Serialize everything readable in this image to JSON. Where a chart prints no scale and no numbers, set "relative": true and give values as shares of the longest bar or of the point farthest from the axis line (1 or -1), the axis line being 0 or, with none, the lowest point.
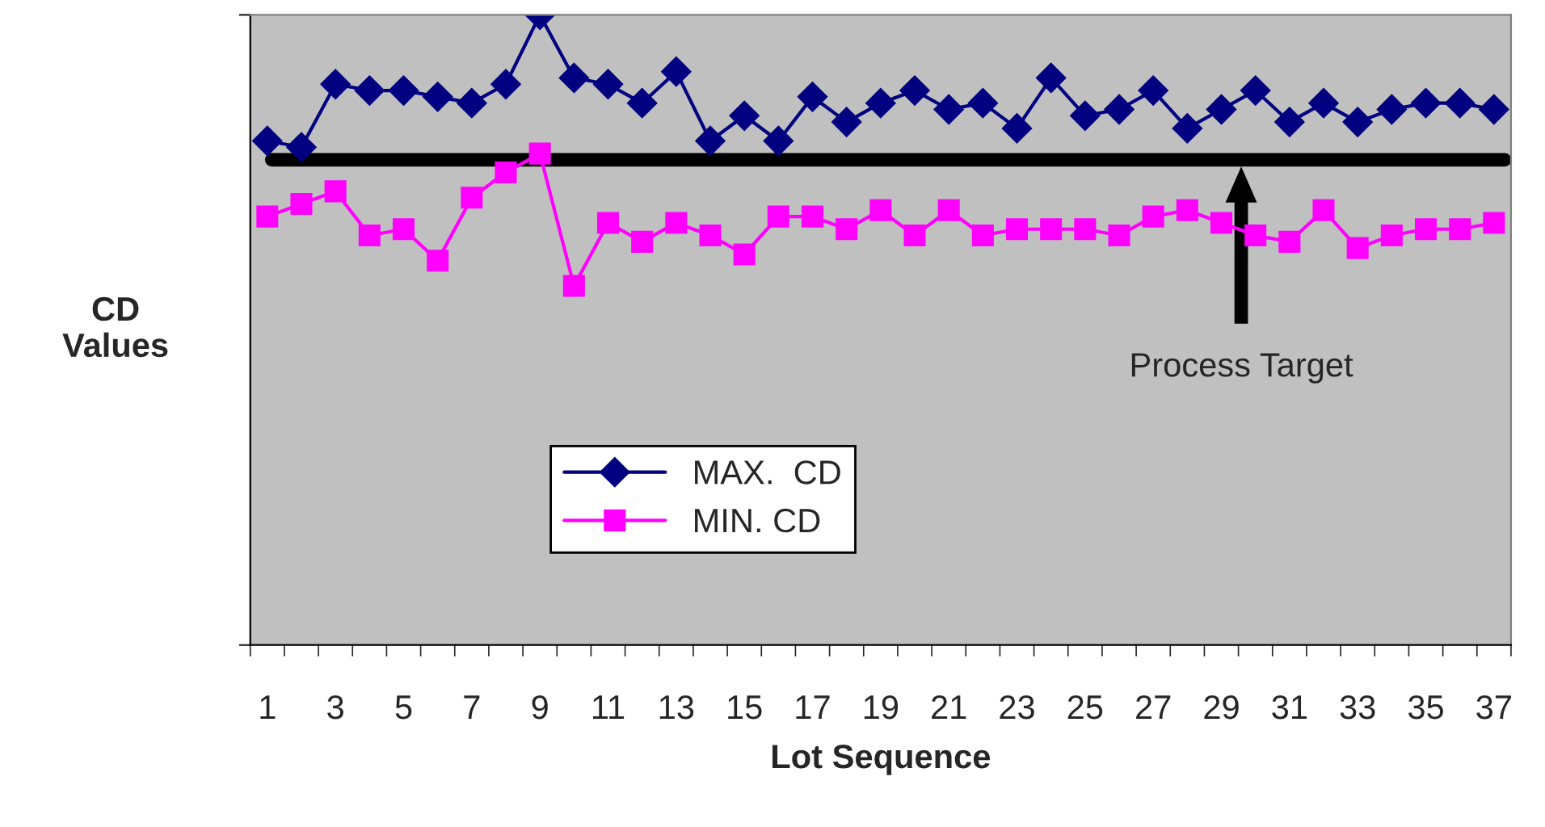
{
  "chart_data": {
    "type": "line",
    "xlabel": "Lot Sequence",
    "ylabel": "CD\nValues",
    "relative": true,
    "tick_labels": "x",
    "legend": "bottom left",
    "grid": false,
    "categories": [
      "1",
      null,
      "3",
      null,
      "5",
      null,
      "7",
      null,
      "9",
      null,
      "11",
      null,
      "13",
      null,
      "15",
      null,
      "17",
      null,
      "19",
      null,
      "21",
      null,
      "23",
      null,
      "25",
      null,
      "27",
      null,
      "29",
      null,
      "31",
      null,
      "33",
      null,
      "35",
      null,
      "37"
    ],
    "series": [
      {
        "name": "MAX.  CD",
        "color": "#000080",
        "marker": "diamond",
        "values": [
          0.8,
          0.79,
          0.89,
          0.88,
          0.88,
          0.87,
          0.86,
          0.89,
          1,
          0.9,
          0.89,
          0.86,
          0.91,
          0.8,
          0.84,
          0.8,
          0.87,
          0.83,
          0.86,
          0.88,
          0.85,
          0.86,
          0.82,
          0.9,
          0.84,
          0.85,
          0.88,
          0.82,
          0.85,
          0.88,
          0.83,
          0.86,
          0.83,
          0.85,
          0.86,
          0.86,
          0.85
        ]
      },
      {
        "name": "MIN. CD",
        "color": "#ff00ff",
        "marker": "square",
        "values": [
          0.68,
          0.7,
          0.72,
          0.65,
          0.66,
          0.61,
          0.71,
          0.75,
          0.78,
          0.57,
          0.67,
          0.64,
          0.67,
          0.65,
          0.62,
          0.68,
          0.68,
          0.66,
          0.69,
          0.65,
          0.69,
          0.65,
          0.66,
          0.66,
          0.66,
          0.65,
          0.68,
          0.69,
          0.67,
          0.65,
          0.64,
          0.69,
          0.63,
          0.65,
          0.66,
          0.66,
          0.67
        ]
      }
    ],
    "ref_lines": [
      {
        "axis": "y",
        "value": 0.77,
        "color": "#000000"
      }
    ],
    "annotations": [
      "Process Target"
    ]
  }
}
